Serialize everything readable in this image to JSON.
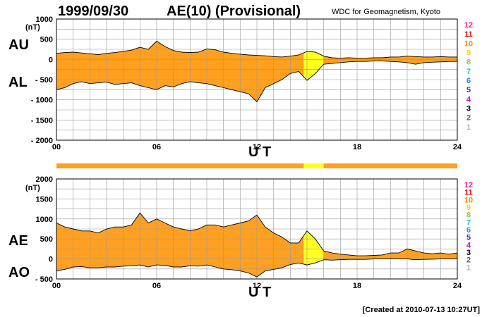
{
  "header": {
    "date": "1999/09/30",
    "title": "AE(10) (Provisional)",
    "source": "WDC for Geomagnetism, Kyoto"
  },
  "footer": {
    "created": "[Created at 2010-07-13 10:27UT]"
  },
  "colors": {
    "fill_main": "#FFA020",
    "fill_highlight": "#FFFF20",
    "grid": "#999999"
  },
  "activity_levels": {
    "labels": [
      "12",
      "11",
      "10",
      "9",
      "8",
      "7",
      "6",
      "5",
      "4",
      "3",
      "2",
      "1"
    ],
    "colors": [
      "#FF1493",
      "#E00000",
      "#FF8C00",
      "#FFD700",
      "#9ACD32",
      "#00CED1",
      "#1E90FF",
      "#3030C0",
      "#CC00CC",
      "#000000",
      "#606060",
      "#B0B0B0"
    ]
  },
  "chart_data": [
    {
      "type": "area",
      "series_labels": [
        "AU",
        "AL"
      ],
      "ylabel": "(nT)",
      "xlabel": "U T",
      "xlim": [
        0,
        24
      ],
      "ylim": [
        -2000,
        1000
      ],
      "x_ticks": [
        "00",
        "06",
        "12",
        "18",
        "24"
      ],
      "y_ticks": [
        "1000",
        "500",
        "0",
        "- 500",
        "- 1000",
        "- 1500",
        "- 2000"
      ],
      "y_tick_values": [
        1000,
        500,
        0,
        -500,
        -1000,
        -1500,
        -2000
      ],
      "highlight_hours": [
        14.8,
        16.0
      ],
      "hours": [
        0,
        0.5,
        1,
        1.5,
        2,
        2.5,
        3,
        3.5,
        4,
        4.5,
        5,
        5.5,
        6,
        6.5,
        7,
        7.5,
        8,
        8.5,
        9,
        9.5,
        10,
        10.5,
        11,
        11.5,
        12,
        12.5,
        13,
        13.5,
        14,
        14.5,
        15,
        15.5,
        16,
        16.5,
        17,
        17.5,
        18,
        18.5,
        19,
        19.5,
        20,
        20.5,
        21,
        21.5,
        22,
        22.5,
        23,
        23.5,
        24
      ],
      "au": [
        150,
        170,
        180,
        160,
        140,
        120,
        150,
        170,
        200,
        230,
        300,
        250,
        450,
        320,
        220,
        180,
        170,
        180,
        260,
        240,
        180,
        150,
        130,
        110,
        100,
        90,
        70,
        60,
        80,
        110,
        200,
        180,
        80,
        40,
        30,
        40,
        30,
        30,
        40,
        40,
        60,
        60,
        80,
        70,
        60,
        60,
        70,
        60,
        60
      ],
      "al": [
        -750,
        -700,
        -600,
        -550,
        -600,
        -580,
        -560,
        -620,
        -600,
        -580,
        -650,
        -700,
        -750,
        -650,
        -680,
        -600,
        -550,
        -580,
        -600,
        -650,
        -700,
        -750,
        -800,
        -850,
        -1050,
        -700,
        -600,
        -500,
        -350,
        -300,
        -520,
        -350,
        -120,
        -100,
        -80,
        -60,
        -50,
        -50,
        -40,
        -40,
        -50,
        -60,
        -80,
        -120,
        -80,
        -70,
        -60,
        -50,
        -50
      ]
    },
    {
      "type": "area",
      "series_labels": [
        "AE",
        "AO"
      ],
      "ylabel": "(nT)",
      "xlabel": "U T",
      "xlim": [
        0,
        24
      ],
      "ylim": [
        -500,
        2000
      ],
      "x_ticks": [
        "00",
        "06",
        "12",
        "18",
        "24"
      ],
      "y_ticks": [
        "2000",
        "1500",
        "1000",
        "500",
        "0",
        "- 500"
      ],
      "y_tick_values": [
        2000,
        1500,
        1000,
        500,
        0,
        -500
      ],
      "highlight_hours": [
        14.8,
        16.0
      ],
      "hours": [
        0,
        0.5,
        1,
        1.5,
        2,
        2.5,
        3,
        3.5,
        4,
        4.5,
        5,
        5.5,
        6,
        6.5,
        7,
        7.5,
        8,
        8.5,
        9,
        9.5,
        10,
        10.5,
        11,
        11.5,
        12,
        12.5,
        13,
        13.5,
        14,
        14.5,
        15,
        15.5,
        16,
        16.5,
        17,
        17.5,
        18,
        18.5,
        19,
        19.5,
        20,
        20.5,
        21,
        21.5,
        22,
        22.5,
        23,
        23.5,
        24
      ],
      "ae": [
        900,
        800,
        750,
        700,
        700,
        650,
        750,
        800,
        800,
        850,
        1150,
        900,
        1000,
        900,
        800,
        750,
        700,
        750,
        850,
        850,
        800,
        850,
        900,
        950,
        1100,
        800,
        650,
        550,
        400,
        400,
        700,
        500,
        200,
        150,
        120,
        100,
        80,
        80,
        90,
        100,
        150,
        150,
        250,
        200,
        150,
        130,
        150,
        120,
        150
      ],
      "ao": [
        -300,
        -260,
        -200,
        -190,
        -220,
        -220,
        -200,
        -200,
        -180,
        -170,
        -150,
        -200,
        -150,
        -160,
        -200,
        -200,
        -170,
        -180,
        -150,
        -200,
        -250,
        -270,
        -300,
        -350,
        -450,
        -300,
        -260,
        -220,
        -140,
        -100,
        -150,
        -100,
        -20,
        -30,
        -20,
        -10,
        -10,
        -10,
        0,
        0,
        5,
        0,
        0,
        -20,
        -10,
        -5,
        0,
        0,
        0
      ]
    }
  ]
}
